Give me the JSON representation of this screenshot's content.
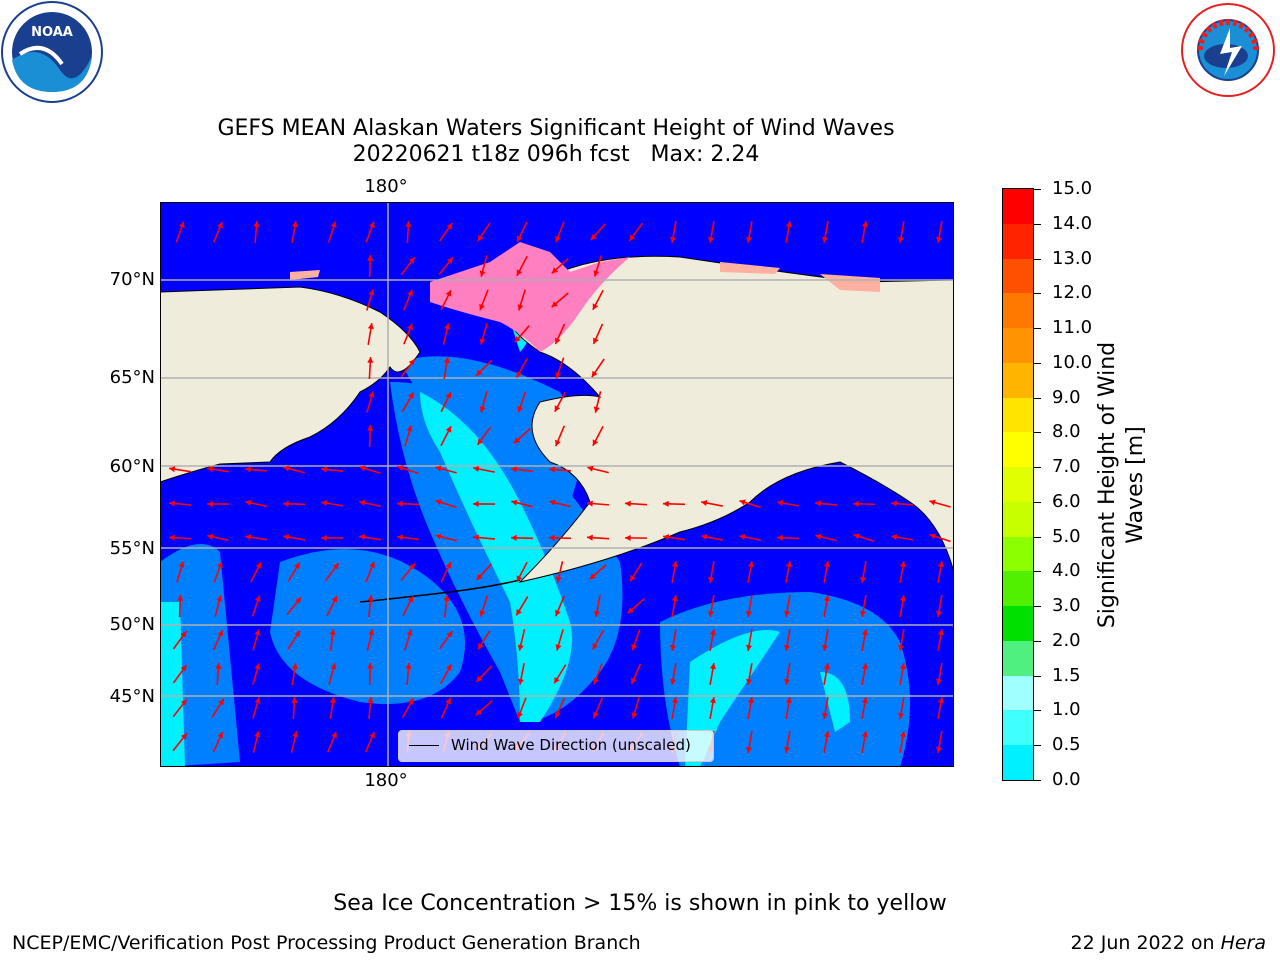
{
  "title_line1": "GEFS MEAN Alaskan Waters Significant Height of Wind Waves",
  "title_line2": "20220621 t18z 096h fcst   Max: 2.24",
  "lon_labels": {
    "top": "180°",
    "bottom": "180°"
  },
  "lat_labels": [
    "70°N",
    "65°N",
    "60°N",
    "55°N",
    "50°N",
    "45°N"
  ],
  "legend": {
    "label": "Wind Wave Direction (unscaled)"
  },
  "colorbar": {
    "label": "Significant Height of Wind Waves [m]",
    "label_line1": "Significant Height of Wind",
    "label_line2": "Waves [m]",
    "ticks": [
      "15.0",
      "14.0",
      "13.0",
      "12.0",
      "11.0",
      "10.0",
      "9.0",
      "8.0",
      "7.0",
      "6.0",
      "5.0",
      "4.0",
      "3.0",
      "2.0",
      "1.5",
      "1.0",
      "0.5",
      "0.0"
    ],
    "colors_top_to_bottom": [
      "#ff0000",
      "#ff2400",
      "#ff5000",
      "#ff7800",
      "#ff9400",
      "#ffb400",
      "#ffe400",
      "#ffff00",
      "#e0ff00",
      "#c8ff00",
      "#8cff00",
      "#50f000",
      "#00e000",
      "#50f080",
      "#a0ffff",
      "#40ffff",
      "#00f0ff",
      "#0080ff",
      "#0000ff"
    ]
  },
  "footer": {
    "note": "Sea Ice Concentration > 15% is shown in pink to yellow",
    "credit": "NCEP/EMC/Verification Post Processing Product Generation Branch",
    "date": "22 Jun 2022 on ",
    "machine": "Hera"
  },
  "logos": {
    "left": "NOAA",
    "right": "NATIONAL WEATHER SERVICE"
  },
  "colors": {
    "land": "#efecdc",
    "ocean_low": "#0000ff",
    "ocean_mid": "#0080ff",
    "ocean_high": "#00f0ff",
    "ice": "#ff80c0",
    "arrow": "#ff0000"
  }
}
